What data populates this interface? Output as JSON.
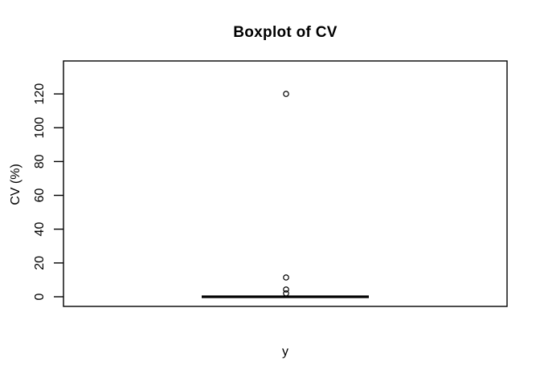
{
  "figure": {
    "title": "Boxplot of CV",
    "xlabel": "y",
    "ylabel": "CV (%)"
  },
  "colors": {
    "foreground": "#000000",
    "background": "#ffffff"
  },
  "chart_data": {
    "type": "boxplot",
    "title": "Boxplot of CV",
    "xlabel": "y",
    "ylabel": "CV (%)",
    "categories": [
      "y"
    ],
    "yticks": [
      0,
      20,
      40,
      60,
      80,
      100,
      120
    ],
    "ylim": [
      -5.7,
      139.5
    ],
    "grid": false,
    "legend": false,
    "series": [
      {
        "name": "y",
        "median": 0,
        "q1": 0,
        "q3": 0,
        "whisker_low": 0,
        "whisker_high": 0,
        "outliers": [
          2,
          4.3,
          11.4,
          120
        ]
      }
    ]
  }
}
